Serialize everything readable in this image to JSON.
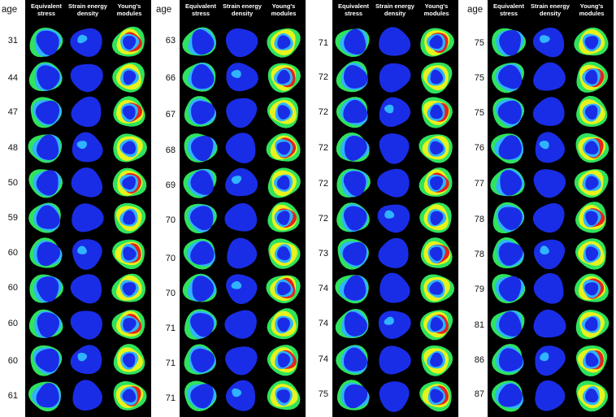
{
  "age_label": "age",
  "column_headers": [
    {
      "key": "eq",
      "label": "Equivalent stress"
    },
    {
      "key": "sed",
      "label": "Strain energy density"
    },
    {
      "key": "ym",
      "label": "Young's modules"
    }
  ],
  "colors": {
    "background": "#000000",
    "blue": "#1a2de6",
    "light_blue": "#2fb4ff",
    "green": "#2fe35c",
    "yellow": "#e8f21c",
    "red": "#e5231b"
  },
  "panels": [
    {
      "ages": [
        "31",
        "44",
        "47",
        "48",
        "50",
        "59",
        "60",
        "60",
        "60",
        "60",
        "61"
      ]
    },
    {
      "ages": [
        "63",
        "66",
        "67",
        "68",
        "69",
        "70",
        "70",
        "70",
        "71",
        "71",
        "71"
      ]
    },
    {
      "ages": [
        "71",
        "72",
        "72",
        "72",
        "72",
        "72",
        "73",
        "74",
        "74",
        "74",
        "75"
      ]
    },
    {
      "ages": [
        "75",
        "75",
        "75",
        "76",
        "77",
        "78",
        "78",
        "79",
        "81",
        "86",
        "87"
      ]
    }
  ]
}
